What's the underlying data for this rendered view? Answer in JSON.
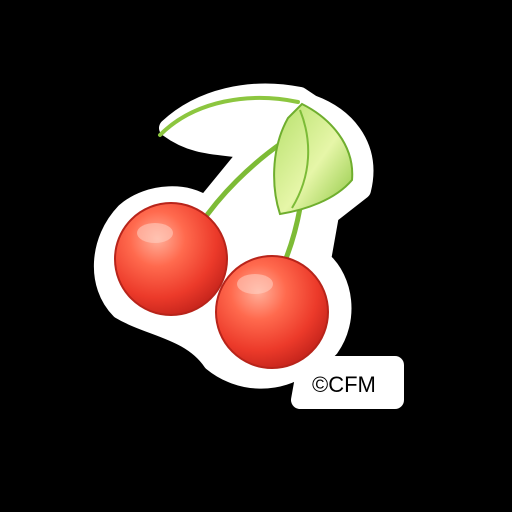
{
  "sticker": {
    "subject": "cherries",
    "copyright": "©CFM",
    "colors": {
      "background": "#000000",
      "outline": "#ffffff",
      "cherry_light": "#ff8a6a",
      "cherry_mid": "#ef3b2c",
      "cherry_dark": "#c0241c",
      "stem": "#8cc63f",
      "leaf_light": "#dff3a0",
      "leaf_dark": "#7cbb37"
    }
  }
}
